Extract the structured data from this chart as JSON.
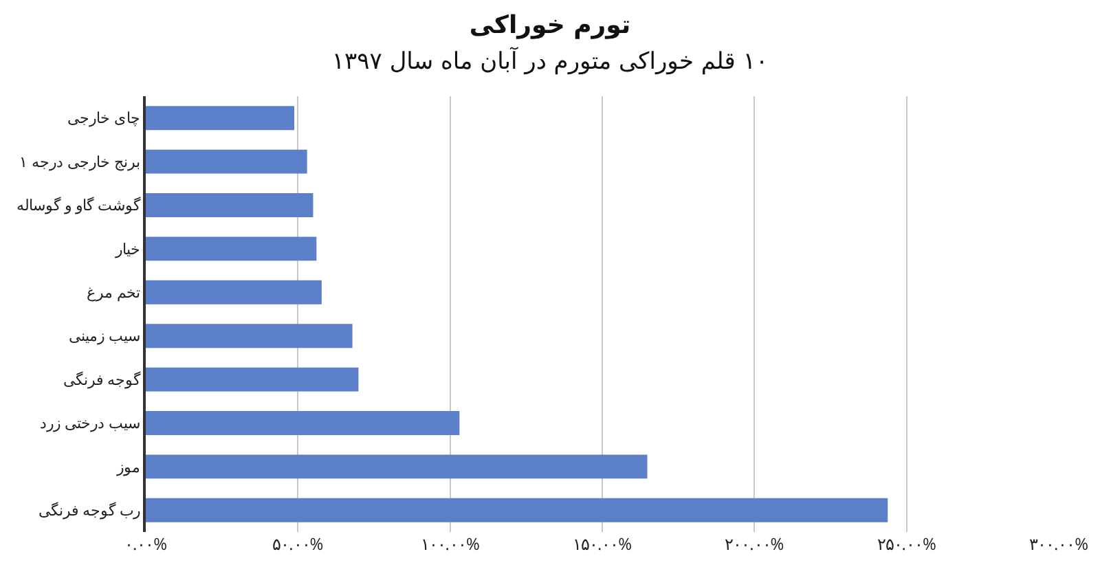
{
  "chart_data": {
    "type": "bar",
    "orientation": "horizontal",
    "title": "تورم خوراکی",
    "subtitle": "۱۰ قلم خوراکی متورم در آبان ماه سال ۱۳۹۷",
    "categories": [
      "چای خارجی",
      "برنج خارجی درجه ۱",
      "گوشت گاو و گوساله",
      "خیار",
      "تخم مرغ",
      "سیب زمینی",
      "گوجه فرنگی",
      "سیب درختی زرد",
      "موز",
      "رب گوجه فرنگی"
    ],
    "values": [
      48.8,
      53,
      55,
      56.1,
      57.8,
      67.9,
      69.9,
      103.1,
      164.8,
      243.8
    ],
    "color": "#5b80c9",
    "xlim": [
      0,
      300
    ],
    "xticks": [
      {
        "value": 0,
        "label": "۰.۰۰%"
      },
      {
        "value": 50,
        "label": "۵۰.۰۰%"
      },
      {
        "value": 100,
        "label": "۱۰۰.۰۰%"
      },
      {
        "value": 150,
        "label": "۱۵۰.۰۰%"
      },
      {
        "value": 200,
        "label": "۲۰۰.۰۰%"
      },
      {
        "value": 250,
        "label": "۲۵۰.۰۰%"
      },
      {
        "value": 300,
        "label": "۳۰۰.۰۰%"
      }
    ],
    "grid": "x"
  }
}
